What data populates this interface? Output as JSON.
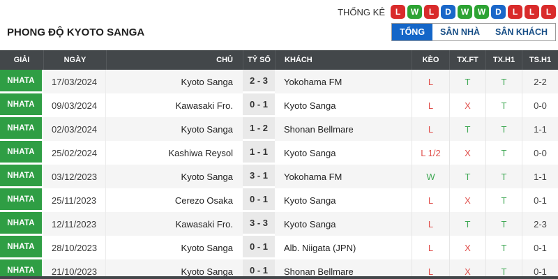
{
  "page": {
    "stats_label": "THỐNG KÊ",
    "title": "PHONG ĐỘ KYOTO SANGA"
  },
  "form_badges": [
    {
      "letter": "L",
      "result": "loss"
    },
    {
      "letter": "W",
      "result": "win"
    },
    {
      "letter": "L",
      "result": "loss"
    },
    {
      "letter": "D",
      "result": "draw"
    },
    {
      "letter": "W",
      "result": "win"
    },
    {
      "letter": "W",
      "result": "win"
    },
    {
      "letter": "D",
      "result": "draw"
    },
    {
      "letter": "L",
      "result": "loss"
    },
    {
      "letter": "L",
      "result": "loss"
    },
    {
      "letter": "L",
      "result": "loss"
    }
  ],
  "tabs": [
    {
      "label": "TỔNG",
      "id": "tong",
      "active": true
    },
    {
      "label": "SÂN NHÀ",
      "id": "san-nha",
      "active": false
    },
    {
      "label": "SÂN KHÁCH",
      "id": "san-khach",
      "active": false
    }
  ],
  "table": {
    "headers": [
      "GIẢI",
      "NGÀY",
      "CHỦ",
      "TỶ SỐ",
      "KHÁCH",
      "KÈO",
      "TX.FT",
      "TX.H1",
      "TS.H1"
    ],
    "rows": [
      {
        "league": "NHATA",
        "date": "17/03/2024",
        "home": "Kyoto Sanga",
        "score": "2 - 3",
        "away": "Yokohama FM",
        "keo": "L",
        "keo_color": "red",
        "txft": "T",
        "txft_color": "green",
        "txh1": "T",
        "txh1_color": "green",
        "tsh1": "2-2"
      },
      {
        "league": "NHATA",
        "date": "09/03/2024",
        "home": "Kawasaki Fro.",
        "score": "0 - 1",
        "away": "Kyoto Sanga",
        "keo": "L",
        "keo_color": "red",
        "txft": "X",
        "txft_color": "red",
        "txh1": "T",
        "txh1_color": "green",
        "tsh1": "0-0"
      },
      {
        "league": "NHATA",
        "date": "02/03/2024",
        "home": "Kyoto Sanga",
        "score": "1 - 2",
        "away": "Shonan Bellmare",
        "keo": "L",
        "keo_color": "red",
        "txft": "T",
        "txft_color": "green",
        "txh1": "T",
        "txh1_color": "green",
        "tsh1": "1-1"
      },
      {
        "league": "NHATA",
        "date": "25/02/2024",
        "home": "Kashiwa Reysol",
        "score": "1 - 1",
        "away": "Kyoto Sanga",
        "keo": "L 1/2",
        "keo_color": "red",
        "txft": "X",
        "txft_color": "red",
        "txh1": "T",
        "txh1_color": "green",
        "tsh1": "0-0"
      },
      {
        "league": "NHATA",
        "date": "03/12/2023",
        "home": "Kyoto Sanga",
        "score": "3 - 1",
        "away": "Yokohama FM",
        "keo": "W",
        "keo_color": "green",
        "txft": "T",
        "txft_color": "green",
        "txh1": "T",
        "txh1_color": "green",
        "tsh1": "1-1"
      },
      {
        "league": "NHATA",
        "date": "25/11/2023",
        "home": "Cerezo Osaka",
        "score": "0 - 1",
        "away": "Kyoto Sanga",
        "keo": "L",
        "keo_color": "red",
        "txft": "X",
        "txft_color": "red",
        "txh1": "T",
        "txh1_color": "green",
        "tsh1": "0-1"
      },
      {
        "league": "NHATA",
        "date": "12/11/2023",
        "home": "Kawasaki Fro.",
        "score": "3 - 3",
        "away": "Kyoto Sanga",
        "keo": "L",
        "keo_color": "red",
        "txft": "T",
        "txft_color": "green",
        "txh1": "T",
        "txh1_color": "green",
        "tsh1": "2-3"
      },
      {
        "league": "NHATA",
        "date": "28/10/2023",
        "home": "Kyoto Sanga",
        "score": "0 - 1",
        "away": "Alb. Niigata (JPN)",
        "keo": "L",
        "keo_color": "red",
        "txft": "X",
        "txft_color": "red",
        "txh1": "T",
        "txh1_color": "green",
        "tsh1": "0-1"
      },
      {
        "league": "NHATA",
        "date": "21/10/2023",
        "home": "Kyoto Sanga",
        "score": "0 - 1",
        "away": "Shonan Bellmare",
        "keo": "L",
        "keo_color": "red",
        "txft": "X",
        "txft_color": "red",
        "txh1": "T",
        "txh1_color": "green",
        "tsh1": "0-1"
      }
    ]
  },
  "colors": {
    "loss_badge": "#d92b2b",
    "win_badge": "#2da333",
    "draw_badge": "#1a67c9",
    "league_badge": "#2f9e44",
    "active_tab": "#1466c8",
    "header_bg": "#43474a",
    "red_text": "#e0504c",
    "green_text": "#3fa854"
  }
}
